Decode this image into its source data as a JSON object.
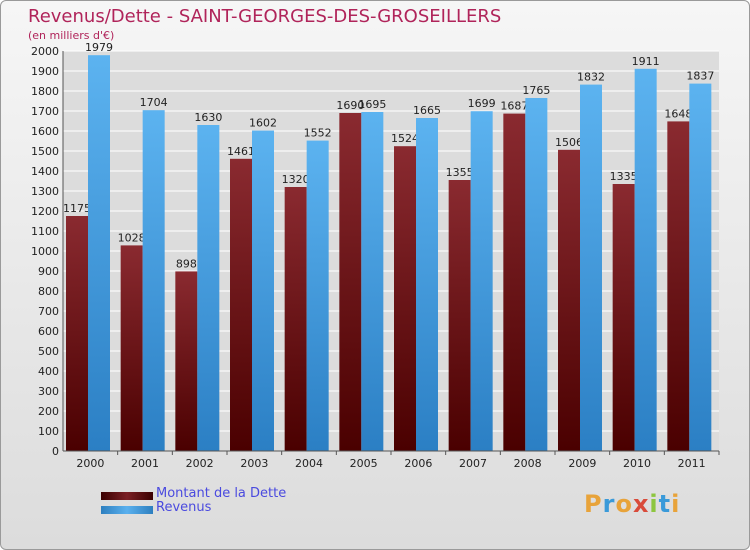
{
  "header": {
    "title": "Revenus/Dette - SAINT-GEORGES-DES-GROSEILLERS",
    "subtitle": "(en milliers d'€)"
  },
  "chart_data": {
    "type": "bar",
    "categories": [
      "2000",
      "2001",
      "2002",
      "2003",
      "2004",
      "2005",
      "2006",
      "2007",
      "2008",
      "2009",
      "2010",
      "2011"
    ],
    "series": [
      {
        "name": "Montant de la Dette",
        "values": [
          1175,
          1028,
          898,
          1461,
          1320,
          1690,
          1524,
          1355,
          1687,
          1506,
          1335,
          1648
        ],
        "labels": [
          "1175",
          "1028",
          "898",
          "1461",
          "1320",
          "1690",
          "1524",
          "1355",
          "1687",
          "1506",
          "1335",
          "1648"
        ],
        "color": "#7a1f24"
      },
      {
        "name": "Revenus",
        "values": [
          1979,
          1704,
          1630,
          1602,
          1552,
          1695,
          1665,
          1699,
          1765,
          1832,
          1911,
          1837
        ],
        "labels": [
          "1979",
          "1704",
          "1630",
          "1602",
          "1552",
          "1695",
          "1665",
          "1699",
          "1765",
          "1832",
          "1911",
          "1837"
        ],
        "color": "#4aa3e6"
      }
    ],
    "y_ticks": [
      0,
      100,
      200,
      300,
      400,
      500,
      600,
      700,
      800,
      900,
      1000,
      1100,
      1200,
      1300,
      1400,
      1500,
      1600,
      1700,
      1800,
      1900,
      2000
    ],
    "ylim": [
      0,
      2000
    ],
    "grid": true,
    "legend_position": "bottom-left"
  },
  "legend": {
    "items": [
      {
        "label": "Montant de la Dette",
        "color": "#7a1f24"
      },
      {
        "label": "Revenus",
        "color": "#4aa3e6"
      }
    ]
  },
  "logo": {
    "letters": [
      "P",
      "r",
      "o",
      "x",
      "i",
      "t",
      "i"
    ],
    "colors": [
      "#e8a33a",
      "#3a9ad9",
      "#e8a33a",
      "#d94b3a",
      "#8dc63f",
      "#3a9ad9",
      "#e8a33a"
    ]
  }
}
